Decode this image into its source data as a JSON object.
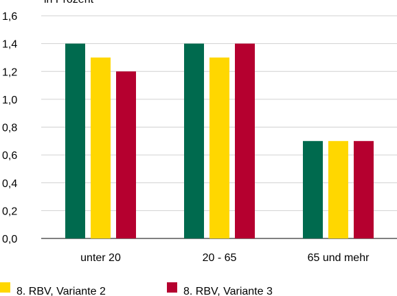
{
  "chart_data": {
    "type": "bar",
    "title": "in Prozent",
    "categories": [
      "unter 20",
      "20 - 65",
      "65 und mehr"
    ],
    "series": [
      {
        "color": "#006a4e",
        "values": [
          1.4,
          1.4,
          0.7
        ]
      },
      {
        "name": "8. RBV, Variante 2",
        "color": "#ffd700",
        "values": [
          1.3,
          1.3,
          0.7
        ]
      },
      {
        "name": "8. RBV, Variante 3",
        "color": "#b5002f",
        "values": [
          1.2,
          1.4,
          0.7
        ]
      }
    ],
    "ylim": [
      0,
      1.6
    ],
    "yticks": [
      {
        "value": 0,
        "label": "0,0"
      },
      {
        "value": 0.2,
        "label": "0,2"
      },
      {
        "value": 0.4,
        "label": "0,4"
      },
      {
        "value": 0.6,
        "label": "0,6"
      },
      {
        "value": 0.8,
        "label": "0,8"
      },
      {
        "value": 1.0,
        "label": "1,0"
      },
      {
        "value": 1.2,
        "label": "1,2"
      },
      {
        "value": 1.4,
        "label": "1,4"
      },
      {
        "value": 1.6,
        "label": "1,6"
      }
    ],
    "grid": true
  }
}
